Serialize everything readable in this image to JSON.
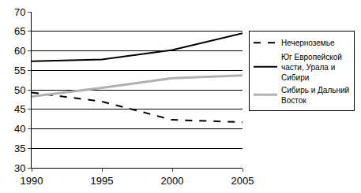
{
  "chart_data": {
    "type": "line",
    "categories": [
      "1990",
      "1995",
      "2000",
      "2005"
    ],
    "series": [
      {
        "name": "Нечерноземье",
        "color": "#000000",
        "line_style": "dash",
        "values": [
          49.3,
          47.0,
          42.3,
          41.7
        ]
      },
      {
        "name": "Юг Европейской части, Урала и Сибири",
        "color": "#000000",
        "line_style": "solid",
        "values": [
          57.3,
          57.8,
          60.2,
          64.5
        ]
      },
      {
        "name": "Сибирь и Дальний Восток",
        "color": "#b0b0b0",
        "line_style": "solid",
        "values": [
          48.3,
          50.5,
          53.0,
          53.7
        ]
      }
    ],
    "ylim": [
      30,
      70
    ],
    "yticks": [
      30,
      35,
      40,
      45,
      50,
      55,
      60,
      65,
      70
    ],
    "grid": true,
    "legend": "right"
  }
}
